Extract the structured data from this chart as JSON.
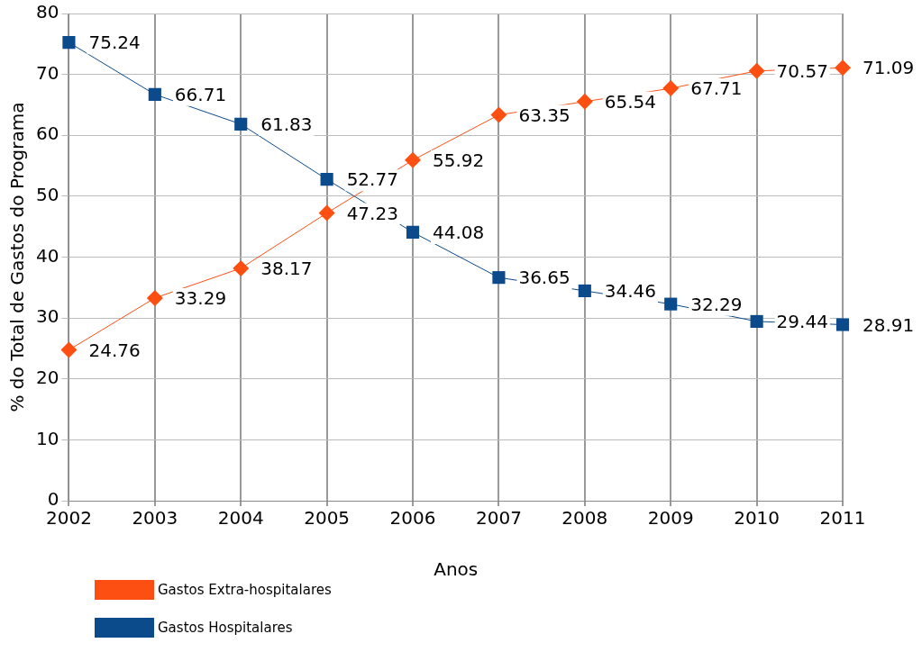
{
  "chart_data": {
    "type": "line",
    "xlabel": "Anos",
    "ylabel": "% do Total de Gastos do Programa",
    "categories": [
      "2002",
      "2003",
      "2004",
      "2005",
      "2006",
      "2007",
      "2008",
      "2009",
      "2010",
      "2011"
    ],
    "series": [
      {
        "name": "Gastos Extra-hospitalares",
        "color": "#fe4f12",
        "marker": "diamond",
        "values": [
          24.76,
          33.29,
          38.17,
          47.23,
          55.92,
          63.35,
          65.54,
          67.71,
          70.57,
          71.09
        ]
      },
      {
        "name": "Gastos Hospitalares",
        "color": "#0b4a8b",
        "marker": "square",
        "values": [
          75.24,
          66.71,
          61.83,
          52.77,
          44.08,
          36.65,
          34.46,
          32.29,
          29.44,
          28.91
        ]
      }
    ],
    "ylim": [
      0,
      80
    ],
    "yticks": [
      0,
      10,
      20,
      30,
      40,
      50,
      60,
      70,
      80
    ],
    "grid": true,
    "legend": "bottom left",
    "data_labels": true,
    "line_style": "solid"
  }
}
